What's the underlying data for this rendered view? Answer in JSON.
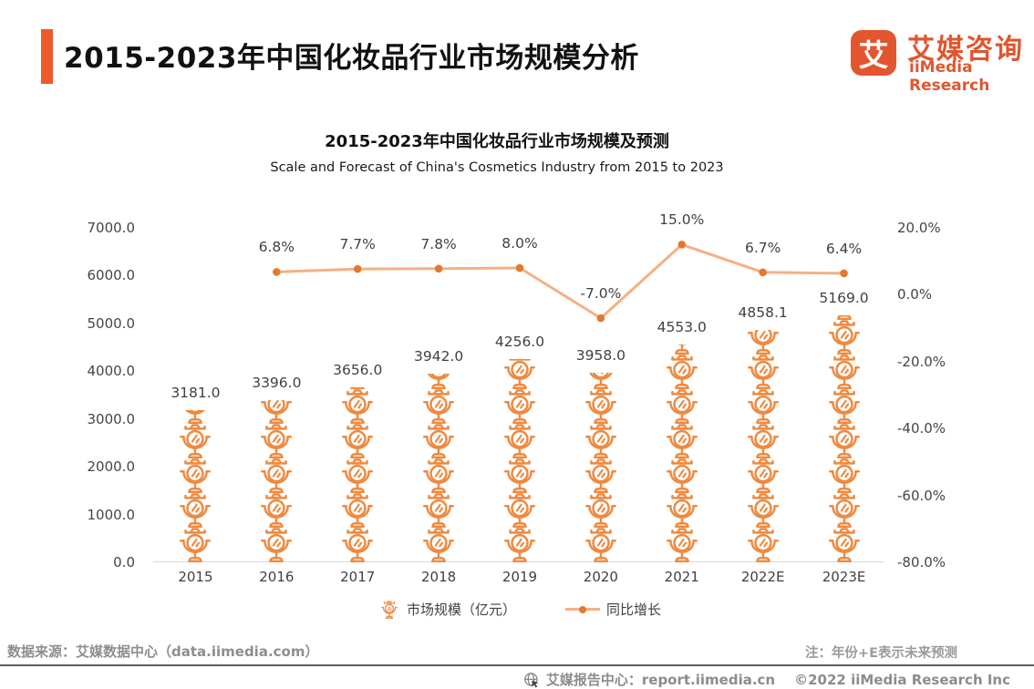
{
  "colors": {
    "accent": "#ee5a2b",
    "logo": "#e2552e",
    "pictogram": "#ee8a40",
    "line": "#f4b183",
    "line_dot": "#e2792f",
    "label_text": "#3f3f46",
    "axis_text": "#44444d",
    "footer_gray": "#8e8e8e",
    "note_gray": "#9b9b9b",
    "baseline": "#d9d9d9"
  },
  "icons": {
    "bar_pictogram": "cosmetic-mirror-icon",
    "footer": "globe-icon",
    "logo_glyph_box": "iimedia-logo"
  },
  "header": {
    "title": "2015-2023年中国化妆品行业市场规模分析",
    "logo": {
      "glyph": "艾",
      "name_cn": "艾媒咨询",
      "name_en": "iiMedia Research"
    }
  },
  "chart": {
    "legend": {
      "bars": "市场规模（亿元）",
      "line": "同比增长"
    }
  },
  "chart_data": {
    "type": "bar",
    "title": "2015-2023年中国化妆品行业市场规模及预测",
    "subtitle": "Scale and Forecast of China's Cosmetics Industry from 2015 to 2023",
    "categories": [
      "2015",
      "2016",
      "2017",
      "2018",
      "2019",
      "2020",
      "2021",
      "2022E",
      "2023E"
    ],
    "series": [
      {
        "name": "市场规模（亿元）",
        "type": "pictogram-bar",
        "axis": "left",
        "unit": "亿元",
        "values": [
          3181.0,
          3396.0,
          3656.0,
          3942.0,
          4256.0,
          3958.0,
          4553.0,
          4858.1,
          5169.0
        ],
        "labels": [
          "3181.0",
          "3396.0",
          "3656.0",
          "3942.0",
          "4256.0",
          "3958.0",
          "4553.0",
          "4858.1",
          "5169.0"
        ]
      },
      {
        "name": "同比增长",
        "type": "line",
        "axis": "right",
        "unit": "%",
        "values": [
          null,
          6.8,
          7.7,
          7.8,
          8.0,
          -7.0,
          15.0,
          6.7,
          6.4
        ],
        "labels": [
          "",
          "6.8%",
          "7.7%",
          "7.8%",
          "8.0%",
          "-7.0%",
          "15.0%",
          "6.7%",
          "6.4%"
        ]
      }
    ],
    "left_axis": {
      "range": [
        0,
        7000
      ],
      "ticks": [
        "7000.0",
        "6000.0",
        "5000.0",
        "4000.0",
        "3000.0",
        "2000.0",
        "1000.0",
        "0.0"
      ]
    },
    "right_axis": {
      "range": [
        -80,
        20
      ],
      "ticks": [
        "20.0%",
        "0.0%",
        "-20.0%",
        "-40.0%",
        "-60.0%",
        "-80.0%"
      ]
    },
    "grid": false,
    "legend_position": "bottom"
  },
  "footer": {
    "source": "数据来源：艾媒数据中心（data.iimedia.com）",
    "note": "注：年份+E表示未来预测",
    "report": "艾媒报告中心：report.iimedia.cn",
    "copyright": "©2022  iiMedia Research Inc"
  }
}
